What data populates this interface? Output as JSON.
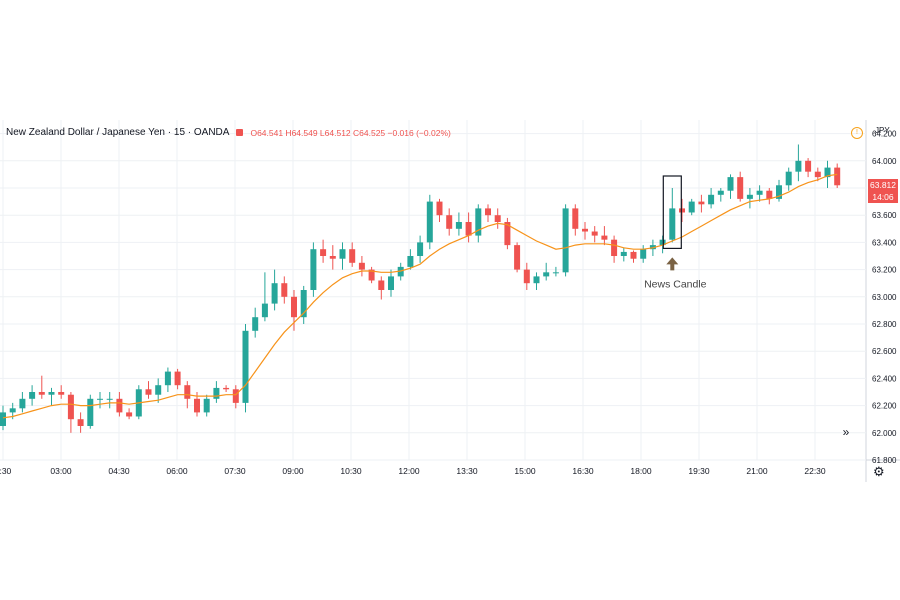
{
  "header": {
    "symbol": "New Zealand Dollar / Japanese Yen · 15 · OANDA",
    "ohlc": "O64.541 H64.549 L64.512 C64.525 −0.016 (−0.02%)"
  },
  "currency": "JPY",
  "price_badge": "63.812",
  "countdown_badge": "14:06",
  "annotation": "News Candle",
  "colors": {
    "up": "#26a69a",
    "down": "#ef5350",
    "ma": "#f7931a",
    "grid": "#eef1f4",
    "annotation": "#7a6244"
  },
  "chart_data": {
    "type": "candlestick",
    "ylim": [
      61.8,
      64.3
    ],
    "y_ticks": [
      61.8,
      62.0,
      62.2,
      62.4,
      62.6,
      62.8,
      63.0,
      63.2,
      63.4,
      63.6,
      63.8,
      64.0,
      64.2
    ],
    "y_tick_labels": [
      "61.800",
      "62.000",
      "62.200",
      "62.400",
      "62.600",
      "62.800",
      "63.000",
      "63.200",
      "63.400",
      "63.600",
      "63.800",
      "64.000",
      "64.200"
    ],
    "x_tick_labels": [
      "1:30",
      "03:00",
      "04:30",
      "06:00",
      "07:30",
      "09:00",
      "10:30",
      "12:00",
      "13:30",
      "15:00",
      "16:30",
      "18:00",
      "19:30",
      "21:00",
      "22:30"
    ],
    "candles": [
      [
        62.05,
        62.2,
        62.02,
        62.15
      ],
      [
        62.15,
        62.22,
        62.1,
        62.18
      ],
      [
        62.18,
        62.3,
        62.15,
        62.25
      ],
      [
        62.25,
        62.35,
        62.2,
        62.3
      ],
      [
        62.3,
        62.42,
        62.25,
        62.28
      ],
      [
        62.28,
        62.33,
        62.2,
        62.3
      ],
      [
        62.3,
        62.35,
        62.25,
        62.28
      ],
      [
        62.28,
        62.3,
        62.0,
        62.1
      ],
      [
        62.1,
        62.15,
        62.0,
        62.05
      ],
      [
        62.05,
        62.28,
        62.03,
        62.25
      ],
      [
        62.25,
        62.3,
        62.18,
        62.25
      ],
      [
        62.25,
        62.3,
        62.18,
        62.25
      ],
      [
        62.25,
        62.3,
        62.12,
        62.15
      ],
      [
        62.15,
        62.18,
        62.1,
        62.12
      ],
      [
        62.12,
        62.35,
        62.1,
        62.32
      ],
      [
        62.32,
        62.38,
        62.25,
        62.28
      ],
      [
        62.28,
        62.4,
        62.22,
        62.35
      ],
      [
        62.35,
        62.48,
        62.3,
        62.45
      ],
      [
        62.45,
        62.47,
        62.32,
        62.35
      ],
      [
        62.35,
        62.38,
        62.18,
        62.25
      ],
      [
        62.25,
        62.3,
        62.12,
        62.15
      ],
      [
        62.15,
        62.28,
        62.12,
        62.25
      ],
      [
        62.25,
        62.38,
        62.22,
        62.33
      ],
      [
        62.33,
        62.35,
        62.3,
        62.32
      ],
      [
        62.32,
        62.35,
        62.18,
        62.22
      ],
      [
        62.22,
        62.8,
        62.15,
        62.75
      ],
      [
        62.75,
        62.92,
        62.7,
        62.85
      ],
      [
        62.85,
        63.18,
        62.82,
        62.95
      ],
      [
        62.95,
        63.2,
        62.9,
        63.1
      ],
      [
        63.1,
        63.15,
        62.95,
        63.0
      ],
      [
        63.0,
        63.05,
        62.75,
        62.85
      ],
      [
        62.85,
        63.08,
        62.8,
        63.05
      ],
      [
        63.05,
        63.4,
        63.0,
        63.35
      ],
      [
        63.35,
        63.42,
        63.25,
        63.3
      ],
      [
        63.3,
        63.38,
        63.2,
        63.28
      ],
      [
        63.28,
        63.4,
        63.2,
        63.35
      ],
      [
        63.35,
        63.4,
        63.22,
        63.25
      ],
      [
        63.25,
        63.3,
        63.15,
        63.2
      ],
      [
        63.2,
        63.22,
        63.1,
        63.12
      ],
      [
        63.12,
        63.15,
        62.98,
        63.05
      ],
      [
        63.05,
        63.2,
        63.0,
        63.15
      ],
      [
        63.15,
        63.25,
        63.12,
        63.22
      ],
      [
        63.22,
        63.35,
        63.2,
        63.3
      ],
      [
        63.3,
        63.45,
        63.25,
        63.4
      ],
      [
        63.4,
        63.75,
        63.35,
        63.7
      ],
      [
        63.7,
        63.72,
        63.55,
        63.6
      ],
      [
        63.6,
        63.65,
        63.45,
        63.5
      ],
      [
        63.5,
        63.62,
        63.45,
        63.55
      ],
      [
        63.55,
        63.62,
        63.4,
        63.45
      ],
      [
        63.45,
        63.68,
        63.4,
        63.65
      ],
      [
        63.65,
        63.68,
        63.55,
        63.6
      ],
      [
        63.6,
        63.65,
        63.5,
        63.55
      ],
      [
        63.55,
        63.58,
        63.35,
        63.38
      ],
      [
        63.38,
        63.4,
        63.18,
        63.2
      ],
      [
        63.2,
        63.25,
        63.05,
        63.1
      ],
      [
        63.1,
        63.18,
        63.05,
        63.15
      ],
      [
        63.15,
        63.25,
        63.12,
        63.18
      ],
      [
        63.18,
        63.22,
        63.15,
        63.18
      ],
      [
        63.18,
        63.68,
        63.15,
        63.65
      ],
      [
        63.65,
        63.68,
        63.45,
        63.5
      ],
      [
        63.5,
        63.55,
        63.42,
        63.48
      ],
      [
        63.48,
        63.52,
        63.4,
        63.45
      ],
      [
        63.45,
        63.52,
        63.38,
        63.42
      ],
      [
        63.42,
        63.45,
        63.25,
        63.3
      ],
      [
        63.3,
        63.36,
        63.26,
        63.33
      ],
      [
        63.33,
        63.34,
        63.25,
        63.28
      ],
      [
        63.28,
        63.38,
        63.25,
        63.35
      ],
      [
        63.35,
        63.42,
        63.3,
        63.38
      ],
      [
        63.38,
        63.45,
        63.32,
        63.42
      ],
      [
        63.42,
        63.8,
        63.4,
        63.65
      ],
      [
        63.65,
        63.72,
        63.55,
        63.62
      ],
      [
        63.62,
        63.72,
        63.6,
        63.7
      ],
      [
        63.7,
        63.75,
        63.62,
        63.68
      ],
      [
        63.68,
        63.8,
        63.65,
        63.75
      ],
      [
        63.75,
        63.8,
        63.7,
        63.78
      ],
      [
        63.78,
        63.9,
        63.72,
        63.88
      ],
      [
        63.88,
        63.92,
        63.7,
        63.72
      ],
      [
        63.72,
        63.8,
        63.65,
        63.75
      ],
      [
        63.75,
        63.82,
        63.7,
        63.78
      ],
      [
        63.78,
        63.8,
        63.68,
        63.72
      ],
      [
        63.72,
        63.86,
        63.7,
        63.82
      ],
      [
        63.82,
        63.95,
        63.78,
        63.92
      ],
      [
        63.92,
        64.12,
        63.85,
        64.0
      ],
      [
        64.0,
        64.02,
        63.88,
        63.92
      ],
      [
        63.92,
        63.95,
        63.85,
        63.88
      ],
      [
        63.88,
        64.0,
        63.8,
        63.95
      ],
      [
        63.95,
        63.98,
        63.8,
        63.82
      ]
    ],
    "moving_average": [
      62.11,
      62.12,
      62.14,
      62.16,
      62.18,
      62.2,
      62.21,
      62.21,
      62.2,
      62.2,
      62.21,
      62.22,
      62.22,
      62.21,
      62.22,
      62.23,
      62.24,
      62.26,
      62.28,
      62.28,
      62.27,
      62.27,
      62.27,
      62.28,
      62.28,
      62.35,
      62.45,
      62.55,
      62.65,
      62.74,
      62.81,
      62.88,
      62.96,
      63.03,
      63.09,
      63.14,
      63.17,
      63.19,
      63.19,
      63.18,
      63.18,
      63.19,
      63.21,
      63.24,
      63.3,
      63.35,
      63.39,
      63.42,
      63.45,
      63.49,
      63.52,
      63.54,
      63.53,
      63.49,
      63.45,
      63.41,
      63.38,
      63.35,
      63.36,
      63.38,
      63.39,
      63.39,
      63.39,
      63.38,
      63.36,
      63.35,
      63.35,
      63.36,
      63.38,
      63.41,
      63.44,
      63.48,
      63.52,
      63.56,
      63.6,
      63.64,
      63.67,
      63.7,
      63.71,
      63.72,
      63.74,
      63.77,
      63.81,
      63.84,
      63.86,
      63.89,
      63.9
    ],
    "highlight_index": 69
  }
}
